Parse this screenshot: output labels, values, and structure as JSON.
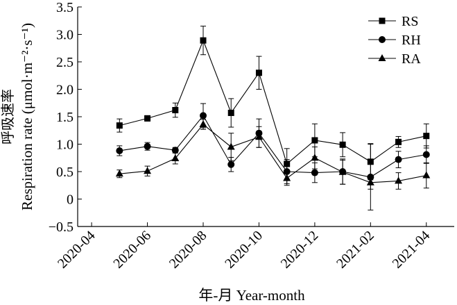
{
  "chart_data": {
    "type": "line",
    "xlabel": "年-月 Year-month",
    "ylabel_cn": "呼吸速率",
    "ylabel_en": "Respiration rate (μmol·m⁻²·s⁻¹)",
    "ylim": [
      -0.5,
      3.5
    ],
    "yticks": [
      "−0.5",
      "0",
      "0.5",
      "1.0",
      "1.5",
      "2.0",
      "2.5",
      "3.0",
      "3.5"
    ],
    "ytick_values": [
      -0.5,
      0,
      0.5,
      1.0,
      1.5,
      2.0,
      2.5,
      3.0,
      3.5
    ],
    "xtick_labels": [
      "2020-04",
      "2020-06",
      "2020-08",
      "2020-10",
      "2020-12",
      "2021-02",
      "2021-04"
    ],
    "xtick_index": [
      0,
      2,
      4,
      6,
      8,
      10,
      12
    ],
    "x": [
      "2020-05",
      "2020-06",
      "2020-07",
      "2020-08",
      "2020-09",
      "2020-10",
      "2020-11",
      "2020-12",
      "2021-01",
      "2021-02",
      "2021-03",
      "2021-04"
    ],
    "x_index": [
      1,
      2,
      3,
      4,
      5,
      6,
      7,
      8,
      9,
      10,
      11,
      12
    ],
    "legend_position": "top-right",
    "grid": false,
    "series": [
      {
        "name": "RS",
        "marker": "square",
        "values": [
          1.34,
          1.47,
          1.62,
          2.89,
          1.57,
          2.3,
          0.64,
          1.07,
          0.99,
          0.68,
          1.04,
          1.15
        ],
        "errors": [
          0.12,
          0.05,
          0.13,
          0.26,
          0.26,
          0.3,
          0.28,
          0.3,
          0.22,
          0.33,
          0.1,
          0.22
        ]
      },
      {
        "name": "RH",
        "marker": "circle",
        "values": [
          0.88,
          0.96,
          0.89,
          1.52,
          0.63,
          1.2,
          0.5,
          0.48,
          0.5,
          0.4,
          0.72,
          0.81
        ],
        "errors": [
          0.09,
          0.07,
          0.05,
          0.22,
          0.13,
          0.26,
          0.22,
          0.18,
          0.23,
          0.6,
          0.15,
          0.16
        ]
      },
      {
        "name": "RA",
        "marker": "triangle",
        "values": [
          0.46,
          0.51,
          0.74,
          1.36,
          0.95,
          1.13,
          0.38,
          0.75,
          0.49,
          0.3,
          0.33,
          0.43
        ],
        "errors": [
          0.07,
          0.09,
          0.1,
          0.09,
          0.25,
          0.19,
          0.13,
          0.2,
          0.22,
          0.12,
          0.15,
          0.23
        ]
      }
    ]
  }
}
